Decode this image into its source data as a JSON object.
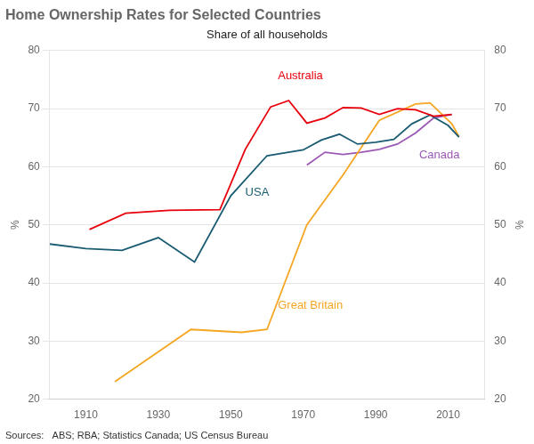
{
  "chart_data": {
    "type": "line",
    "title": "Home Ownership Rates for Selected Countries",
    "subtitle": "Share of all households",
    "source": "Sources:   ABS; RBA; Statistics Canada; US Census Bureau",
    "ylabel": "%",
    "y2label": "%",
    "xlim": [
      1900,
      2020
    ],
    "xticks": [
      1910,
      1930,
      1950,
      1970,
      1990,
      2010
    ],
    "ylim": [
      20,
      80
    ],
    "yticks": [
      20,
      30,
      40,
      50,
      60,
      70,
      80
    ],
    "y2lim": [
      20,
      80
    ],
    "y2ticks": [
      20,
      30,
      40,
      50,
      60,
      70,
      80
    ],
    "grid": true,
    "series": [
      {
        "name": "Australia",
        "color": "#e8000d",
        "x": [
          1911,
          1921,
          1933,
          1947,
          1954,
          1961,
          1966,
          1971,
          1976,
          1981,
          1986,
          1991,
          1996,
          2001,
          2006,
          2011
        ],
        "values": [
          49.2,
          52.0,
          52.5,
          52.6,
          63.0,
          70.3,
          71.4,
          67.5,
          68.4,
          70.2,
          70.1,
          69.0,
          70.0,
          69.8,
          68.7,
          69.0
        ]
      },
      {
        "name": "USA",
        "color": "#1a5c72",
        "x": [
          1900,
          1910,
          1920,
          1930,
          1940,
          1950,
          1960,
          1970,
          1975,
          1980,
          1985,
          1990,
          1995,
          2000,
          2005,
          2010,
          2013
        ],
        "values": [
          46.7,
          45.9,
          45.6,
          47.8,
          43.6,
          55.0,
          61.9,
          62.9,
          64.6,
          65.6,
          63.9,
          64.2,
          64.7,
          67.4,
          68.9,
          67.1,
          65.1
        ]
      },
      {
        "name": "Great Britain",
        "color": "#f5a623",
        "x": [
          1918,
          1939,
          1953,
          1960,
          1971,
          1981,
          1991,
          2001,
          2005,
          2011,
          2013
        ],
        "values": [
          23.0,
          32.0,
          31.5,
          32.0,
          50.0,
          58.6,
          68.0,
          70.8,
          71.0,
          67.4,
          65.2
        ]
      },
      {
        "name": "Canada",
        "color": "#9b59b6",
        "x": [
          1971,
          1976,
          1981,
          1986,
          1991,
          1996,
          2001,
          2006,
          2011
        ],
        "values": [
          60.3,
          62.5,
          62.1,
          62.5,
          63.0,
          63.9,
          65.8,
          68.4,
          69.0
        ]
      }
    ],
    "annotations": [
      {
        "text": "Australia",
        "x": 1963,
        "y": 75.0,
        "color": "#e8000d"
      },
      {
        "text": "USA",
        "x": 1954,
        "y": 55.0,
        "color": "#1a5c72"
      },
      {
        "text": "Great Britain",
        "x": 1963,
        "y": 35.5,
        "color": "#f5a623"
      },
      {
        "text": "Canada",
        "x": 2002,
        "y": 61.5,
        "color": "#9b59b6"
      }
    ]
  }
}
